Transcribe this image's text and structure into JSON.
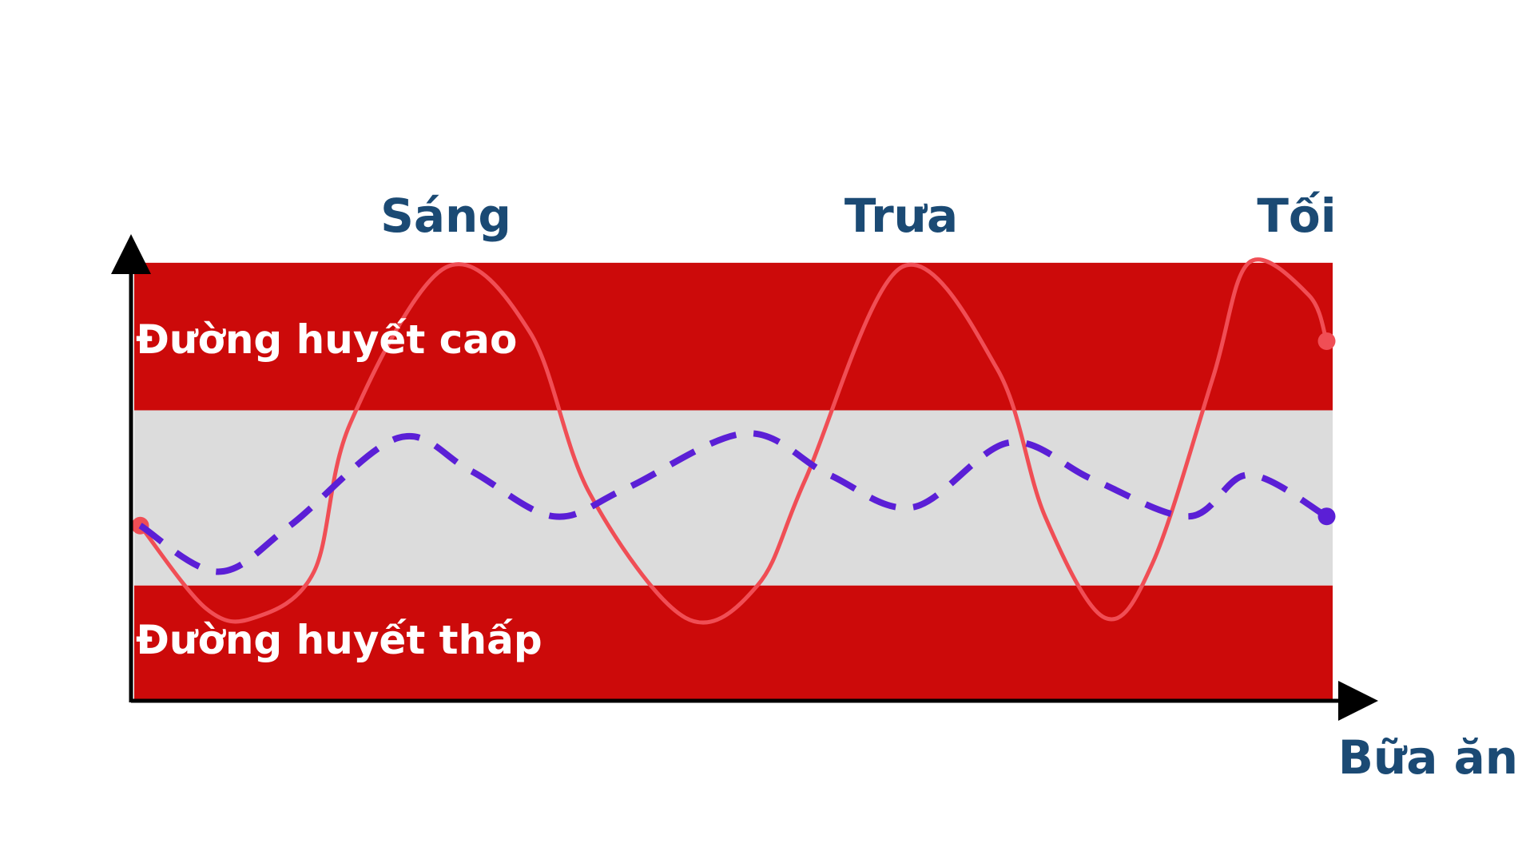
{
  "chart_data": {
    "type": "line",
    "title": "",
    "xlabel": "Bữa ăn",
    "ylabel": "",
    "xlim": [
      0,
      100
    ],
    "ylim": [
      0,
      100
    ],
    "grid": false,
    "legend": "none",
    "meals": [
      {
        "name": "Sáng",
        "x": 26
      },
      {
        "name": "Trưa",
        "x": 64
      },
      {
        "name": "Tối",
        "x": 97
      }
    ],
    "zones": [
      {
        "label": "Đường huyết cao",
        "from": 63,
        "to": 95,
        "color": "#cc0a0a"
      },
      {
        "label": "",
        "from": 25,
        "to": 63,
        "color": "#dcdcdc"
      },
      {
        "label": "Đường huyết thấp",
        "from": 0,
        "to": 25,
        "color": "#cc0a0a"
      }
    ],
    "series": [
      {
        "style": "solid",
        "color": "#f04e55",
        "x": [
          0.5,
          6,
          10,
          15,
          18,
          26,
          33,
          38,
          46,
          52,
          56,
          64,
          72,
          76,
          81,
          85,
          90,
          93,
          98,
          99.5
        ],
        "y": [
          38,
          20,
          18,
          28,
          60,
          94,
          80,
          45,
          18,
          25,
          48,
          94,
          72,
          40,
          18,
          30,
          70,
          95,
          88,
          78
        ]
      },
      {
        "style": "dashed",
        "color": "#5b1fd6",
        "x": [
          0.5,
          7,
          13,
          22,
          28,
          35,
          41,
          51,
          58,
          65,
          73,
          80,
          88,
          93,
          99.5
        ],
        "y": [
          38,
          28,
          38,
          57,
          50,
          40,
          46,
          58,
          49,
          42,
          56,
          48,
          40,
          49,
          40
        ]
      }
    ]
  }
}
